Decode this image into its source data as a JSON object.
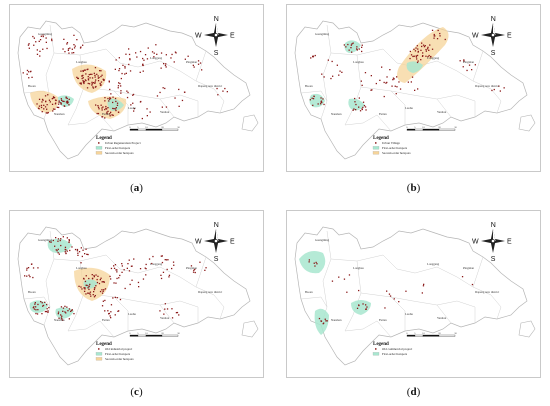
{
  "panels": [
    {
      "id": "a",
      "caption": "a",
      "legend": {
        "title": "Legend",
        "items": [
          {
            "kind": "point",
            "label": "Urban Regeneration Project"
          },
          {
            "kind": "first",
            "label": "First-order hotspots"
          },
          {
            "kind": "second",
            "label": "Second-order hotspots"
          }
        ]
      },
      "places": [
        "Guangming",
        "Baoan",
        "Longhua",
        "Longgang",
        "Pingshan",
        "Nanshan",
        "Futian",
        "Luohu",
        "Yantian",
        "Dapeng new district"
      ],
      "compass": {
        "n": "N",
        "s": "S",
        "e": "E",
        "w": "W"
      }
    },
    {
      "id": "b",
      "caption": "b",
      "legend": {
        "title": "Legend",
        "items": [
          {
            "kind": "point",
            "label": "Urban Village"
          },
          {
            "kind": "first",
            "label": "First-order hotspots"
          },
          {
            "kind": "second",
            "label": "Second-order hotspots"
          }
        ]
      },
      "places": [
        "Guangming",
        "Baoan",
        "Longhua",
        "Longgang",
        "Pingshan",
        "Nanshan",
        "Futian",
        "Luohu",
        "Yantian",
        "Dapeng new district"
      ],
      "compass": {
        "n": "N",
        "s": "S",
        "e": "E",
        "w": "W"
      }
    },
    {
      "id": "c",
      "caption": "c",
      "legend": {
        "title": "Legend",
        "items": [
          {
            "kind": "point",
            "label": "Old industrial project"
          },
          {
            "kind": "first",
            "label": "First-order hotspots"
          },
          {
            "kind": "second",
            "label": "Second-order hotspots"
          }
        ]
      },
      "places": [
        "Guangming",
        "Baoan",
        "Longhua",
        "Longgang",
        "Pingshan",
        "Nanshan",
        "Futian",
        "Luohu",
        "Yantian",
        "Dapeng new district"
      ],
      "compass": {
        "n": "N",
        "s": "S",
        "e": "E",
        "w": "W"
      }
    },
    {
      "id": "d",
      "caption": "d",
      "legend": {
        "title": "Legend",
        "items": [
          {
            "kind": "point",
            "label": "Old commercial project"
          },
          {
            "kind": "first",
            "label": "First-order hotspots"
          }
        ]
      },
      "places": [
        "Guangming",
        "Baoan",
        "Longhua",
        "Longgang",
        "Pingshan",
        "Nanshan",
        "Futian",
        "Luohu",
        "Yantian",
        "Dapeng new district"
      ],
      "compass": {
        "n": "N",
        "s": "S",
        "e": "E",
        "w": "W"
      }
    }
  ],
  "scale_ticks": [
    "0",
    "5",
    "10",
    "20",
    "30"
  ],
  "colors": {
    "point": "#8b1a1a",
    "first_fill": "#a8e6cf",
    "second_fill": "#f6d49a",
    "district_line": "#b5b5b5"
  }
}
